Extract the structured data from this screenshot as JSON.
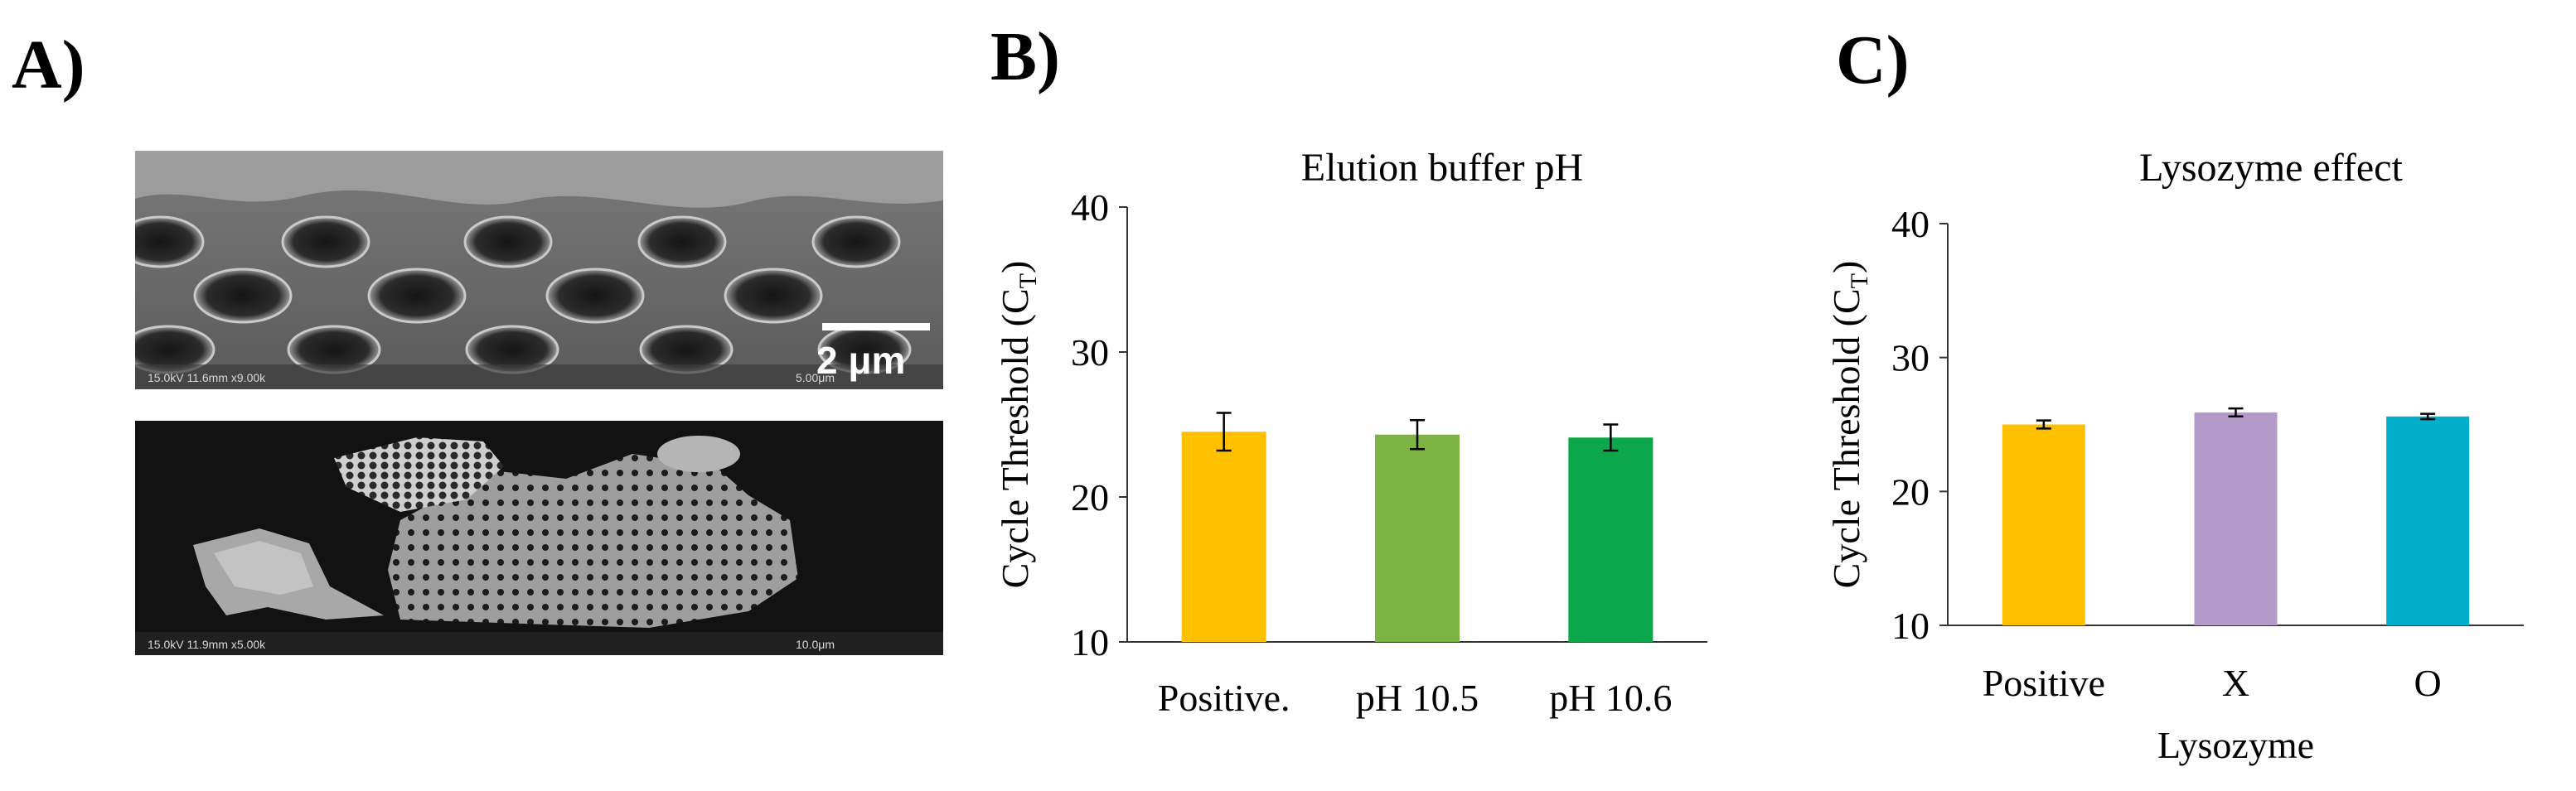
{
  "panels": {
    "a": "A)",
    "b": "B)",
    "c": "C)"
  },
  "sem": {
    "scale_label": "2 μm",
    "top_meta": "15.0kV 11.6mm x9.00k",
    "top_meta_right": "5.00μm",
    "bottom_meta": "15.0kV 11.9mm x5.00k",
    "bottom_meta_right": "10.0μm"
  },
  "chart_data": [
    {
      "type": "bar",
      "title": "Elution buffer pH",
      "xlabel": "",
      "ylabel": "Cycle Threshold (C",
      "ylabel_sub": "T",
      "ylabel_close": ")",
      "ylim": [
        10,
        40
      ],
      "yticks": [
        10,
        20,
        30,
        40
      ],
      "categories": [
        "Positive.",
        "pH 10.5",
        "pH 10.6"
      ],
      "values": [
        24.5,
        24.3,
        24.1
      ],
      "errors": [
        1.3,
        1.0,
        0.9
      ],
      "colors": [
        "#FFC000",
        "#7CB342",
        "#0AA84A"
      ],
      "grid": false
    },
    {
      "type": "bar",
      "title": "Lysozyme effect",
      "xlabel": "Lysozyme",
      "ylabel": "Cycle Threshold (C",
      "ylabel_sub": "T",
      "ylabel_close": ")",
      "ylim": [
        10,
        40
      ],
      "yticks": [
        10,
        20,
        30,
        40
      ],
      "categories": [
        "Positive",
        "X",
        "O"
      ],
      "values": [
        25.0,
        25.9,
        25.6
      ],
      "errors": [
        0.3,
        0.3,
        0.2
      ],
      "colors": [
        "#FFC000",
        "#B39AC9",
        "#00AECB"
      ],
      "grid": false
    }
  ]
}
